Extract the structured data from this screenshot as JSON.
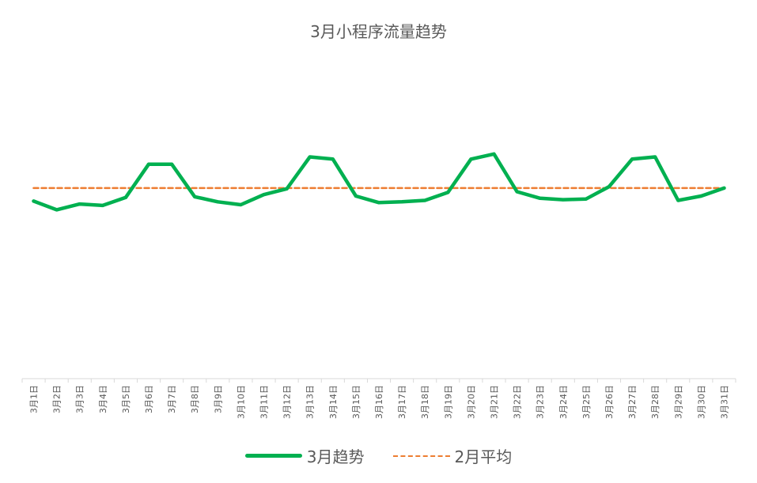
{
  "chart_data": {
    "type": "line",
    "title": "3月小程序流量趋势",
    "xlabel": "",
    "ylabel": "",
    "categories": [
      "3月1日",
      "3月2日",
      "3月3日",
      "3月4日",
      "3月5日",
      "3月6日",
      "3月7日",
      "3月8日",
      "3月9日",
      "3月10日",
      "3月11日",
      "3月12日",
      "3月13日",
      "3月14日",
      "3月15日",
      "3月16日",
      "3月17日",
      "3月18日",
      "3月19日",
      "3月20日",
      "3月21日",
      "3月22日",
      "3月23日",
      "3月24日",
      "3月25日",
      "3月26日",
      "3月27日",
      "3月28日",
      "3月29日",
      "3月30日",
      "3月31日"
    ],
    "series": [
      {
        "name": "3月趋势",
        "color": "#00b050",
        "style": "solid",
        "values": [
          245,
          233,
          241,
          239,
          250,
          296,
          296,
          251,
          244,
          240,
          254,
          262,
          306,
          303,
          252,
          243,
          244,
          246,
          257,
          303,
          310,
          258,
          249,
          247,
          248,
          265,
          303,
          306,
          246,
          252,
          263
        ]
      },
      {
        "name": "2月平均",
        "color": "#ed7d31",
        "style": "dashed",
        "values": [
          263,
          263,
          263,
          263,
          263,
          263,
          263,
          263,
          263,
          263,
          263,
          263,
          263,
          263,
          263,
          263,
          263,
          263,
          263,
          263,
          263,
          263,
          263,
          263,
          263,
          263,
          263,
          263,
          263,
          263,
          263
        ]
      }
    ],
    "ylim": [
      0,
      420
    ],
    "grid": false,
    "legend": "bottom"
  }
}
